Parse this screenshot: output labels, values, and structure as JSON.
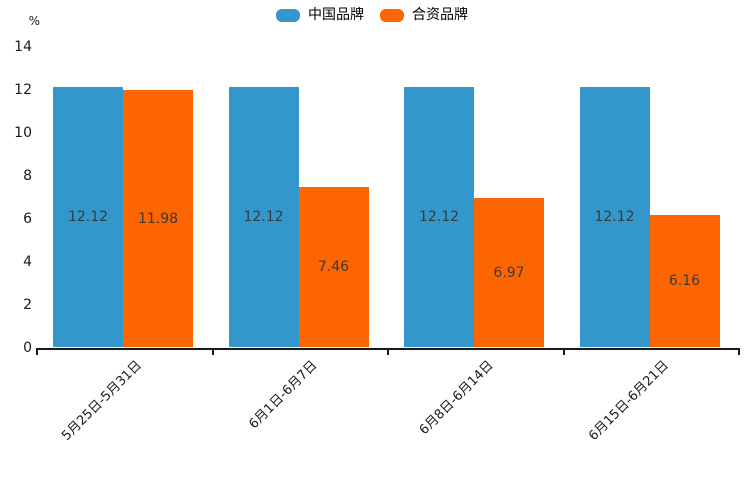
{
  "chart_data": {
    "type": "bar",
    "title": "",
    "categories": [
      "5月25日-5月31日",
      "6月1日-6月7日",
      "6月8日-6月14日",
      "6月15日-6月21日"
    ],
    "series": [
      {
        "name": "中国品牌",
        "color": "#3497cb",
        "values": [
          12.12,
          12.12,
          12.12,
          12.12
        ]
      },
      {
        "name": "合资品牌",
        "color": "#fc6500",
        "values": [
          11.98,
          7.46,
          6.97,
          6.16
        ]
      }
    ],
    "xlabel": "",
    "ylabel": "%",
    "y_ticks": [
      0,
      2,
      4,
      6,
      8,
      10,
      12,
      14
    ],
    "ylim": [
      0,
      14
    ],
    "grid": false,
    "legend_position": "top-center",
    "data_labels": true,
    "x_label_rotation_deg": 45
  },
  "colors": {
    "background": "#ffffff",
    "axis": "#1a1a1a",
    "tick_text": "#1a1a1a",
    "value_label_text": "#3a3a3a"
  }
}
